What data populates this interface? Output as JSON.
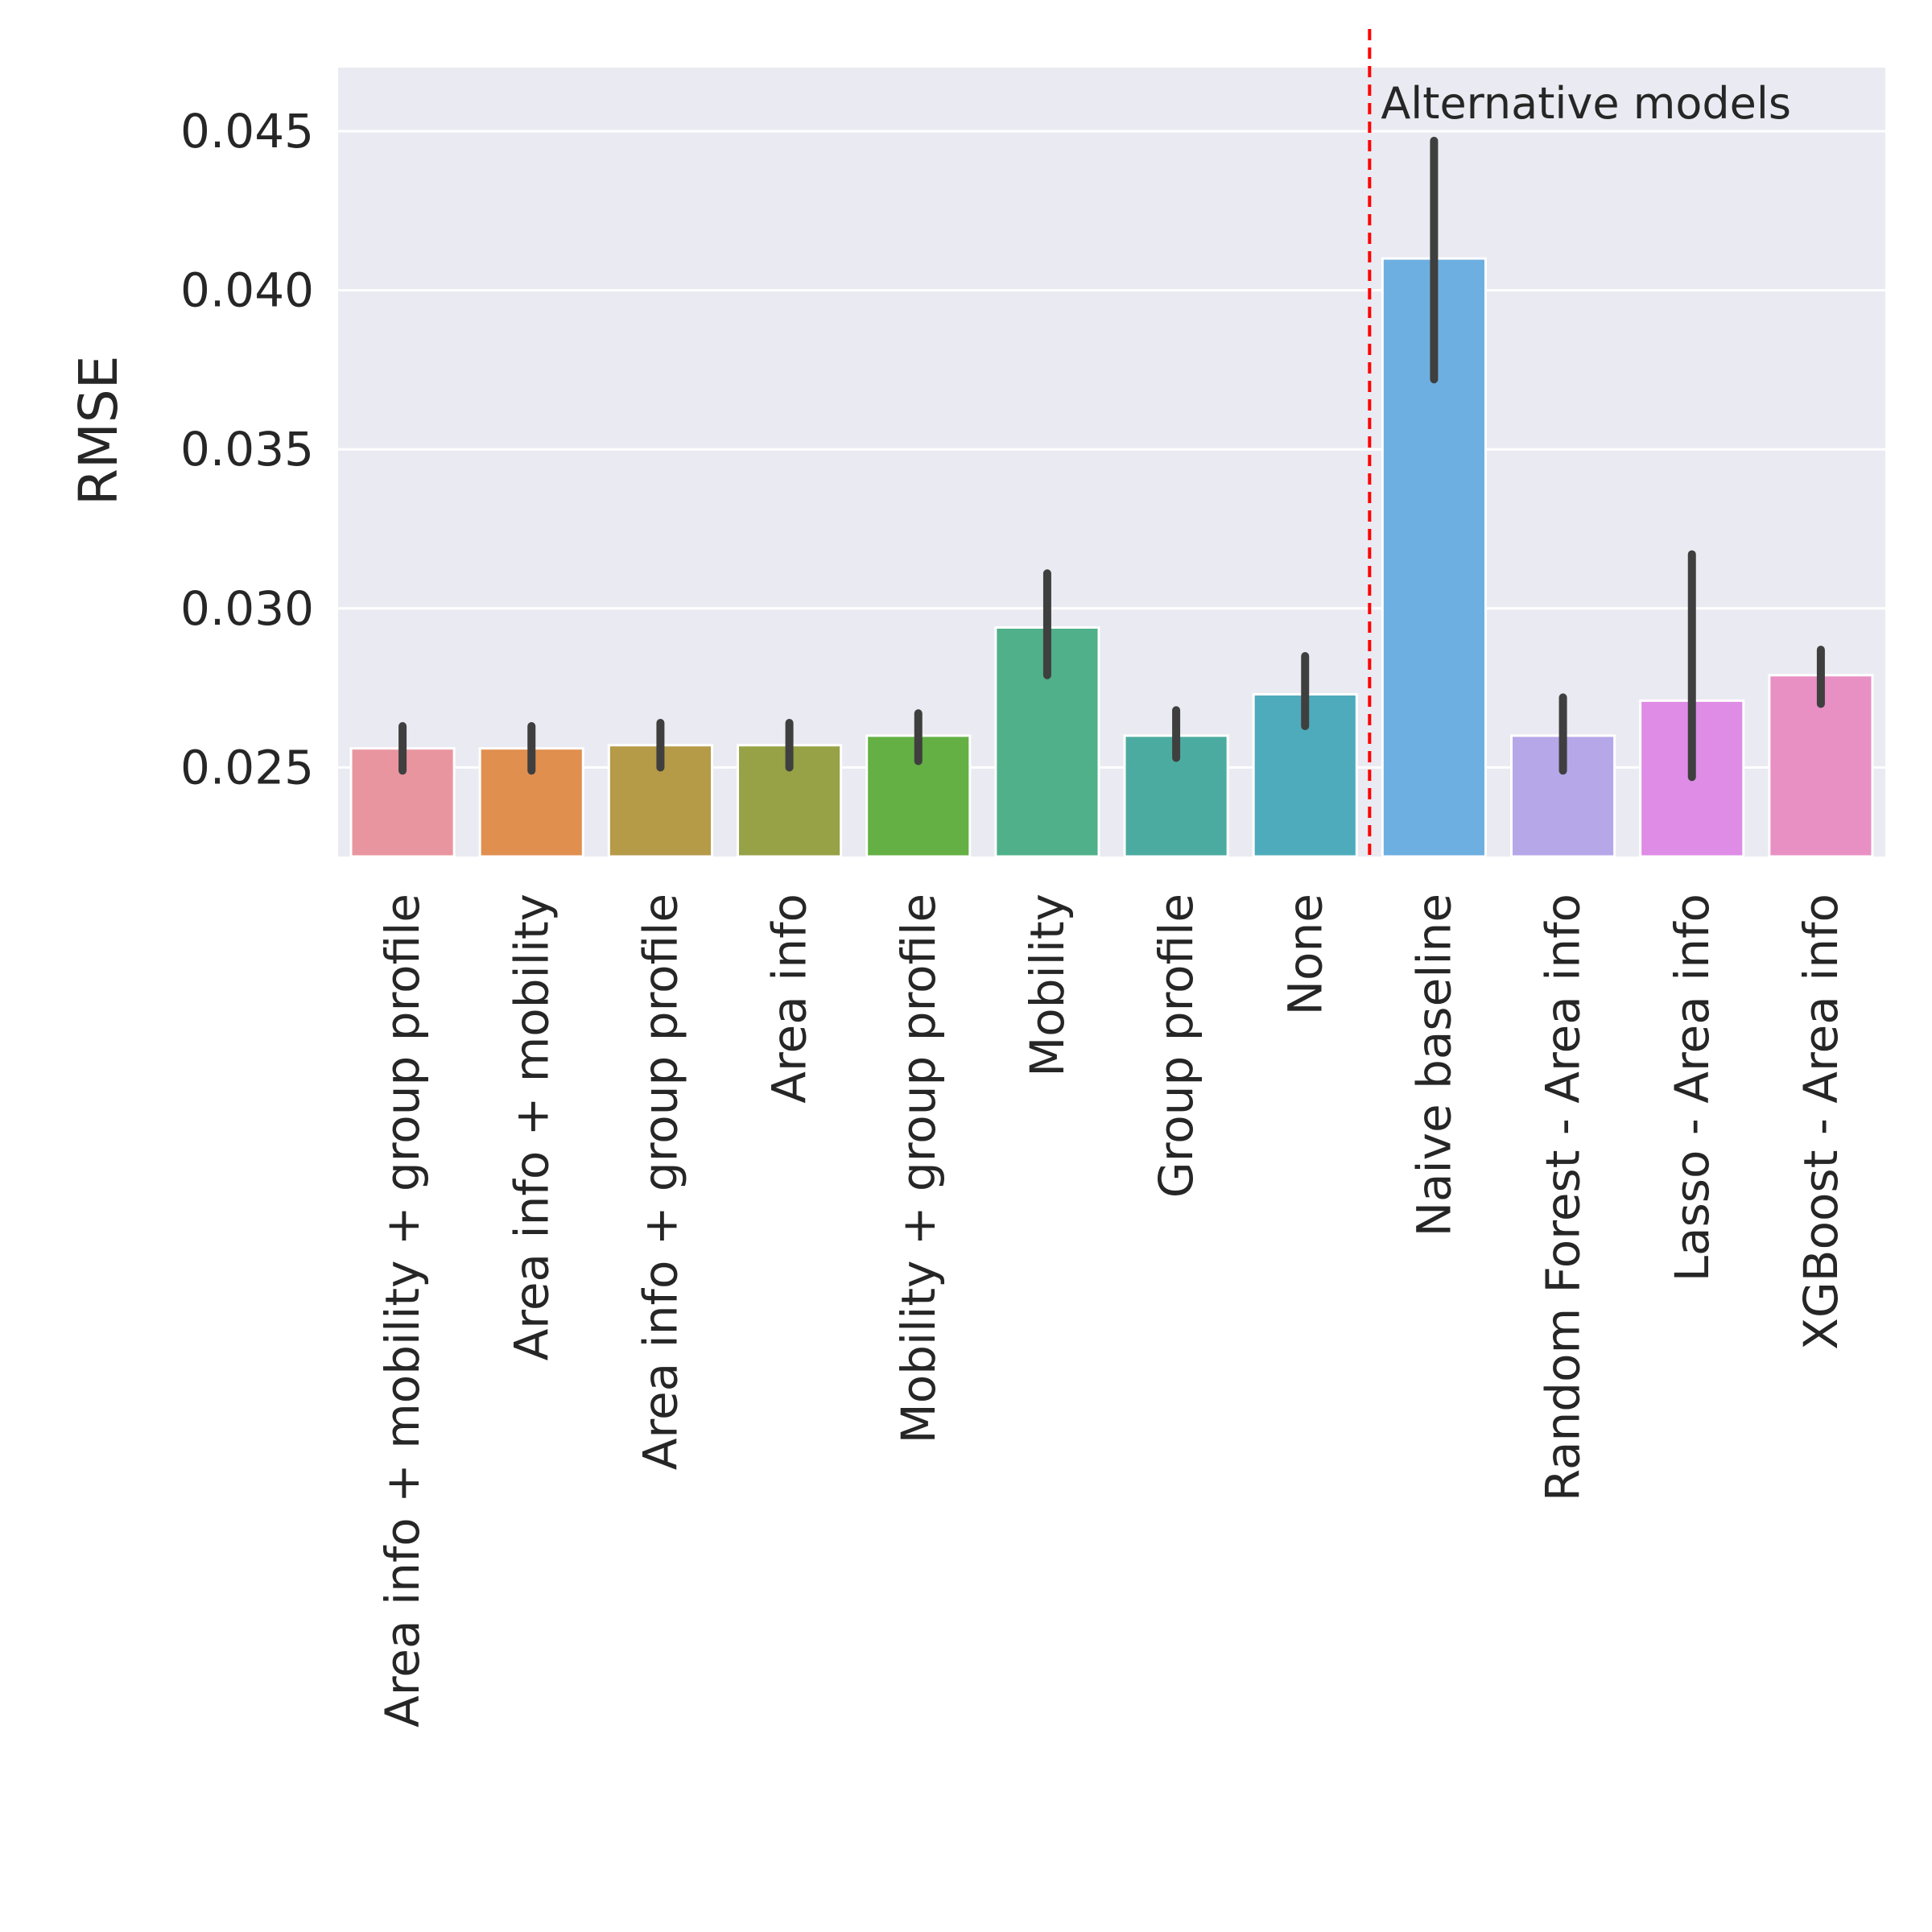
{
  "chart_data": {
    "type": "bar",
    "title": "",
    "xlabel": "",
    "ylabel": "RMSE",
    "ylim": [
      0.0222,
      0.047
    ],
    "yticks": [
      "0.025",
      "0.030",
      "0.035",
      "0.040",
      "0.045"
    ],
    "grid": true,
    "categories": [
      "Area info + mobility + group profile",
      "Area info + mobility",
      "Area info + group profile",
      "Area info",
      "Mobility + group profile",
      "Mobility",
      "Group profile",
      "None",
      "Naive baseline",
      "Random Forest - Area info",
      "Lasso - Area info",
      "XGBoost - Area info"
    ],
    "values": [
      0.0256,
      0.0256,
      0.0257,
      0.0257,
      0.026,
      0.0294,
      0.026,
      0.0273,
      0.041,
      0.026,
      0.0271,
      0.0279
    ],
    "error_low": [
      0.0249,
      0.0249,
      0.025,
      0.025,
      0.0252,
      0.0279,
      0.0253,
      0.0263,
      0.0372,
      0.0249,
      0.0247,
      0.027
    ],
    "error_high": [
      0.0263,
      0.0263,
      0.0264,
      0.0264,
      0.0267,
      0.0311,
      0.0268,
      0.0285,
      0.0447,
      0.0272,
      0.0317,
      0.0287
    ],
    "colors": [
      "#E8959F",
      "#E08F4F",
      "#B59A48",
      "#96A245",
      "#64B045",
      "#4FB089",
      "#4CABA0",
      "#4EABBB",
      "#6DAFE1",
      "#B6A7E9",
      "#DE8CE6",
      "#E890C4"
    ],
    "separator": {
      "after_index": 7,
      "color": "#FF0000",
      "style": "dashed"
    },
    "annotation": "Alternative models"
  }
}
